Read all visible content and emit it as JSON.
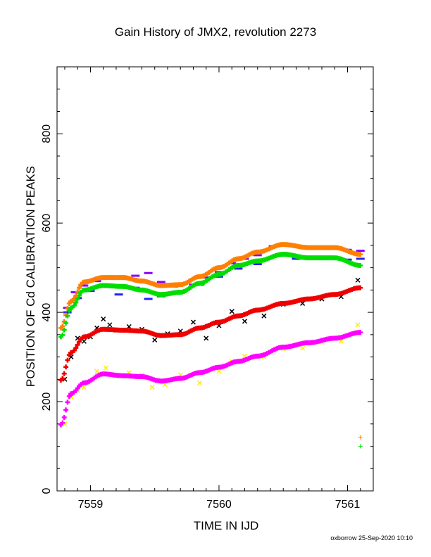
{
  "header": {
    "title": "Gain History of JMX2, revolution 2273",
    "footer": "oxborrow 25-Sep-2020 10:10"
  },
  "chart_data": {
    "type": "scatter",
    "title": "Gain History of JMX2, revolution 2273",
    "xlabel": "TIME IN IJD",
    "ylabel": "POSITION OF Cd CALIBRATION PEAKS",
    "xlim": [
      7558.74,
      7561.2
    ],
    "ylim": [
      0,
      950
    ],
    "x_ticks": [
      7559,
      7560,
      7561
    ],
    "x_tick_labels": [
      "7559",
      "7560",
      "7561"
    ],
    "y_ticks": [
      0,
      200,
      400,
      600,
      800
    ],
    "y_tick_labels": [
      "0",
      "200",
      "400",
      "600",
      "800"
    ],
    "grid": false,
    "legend": "none",
    "series": [
      {
        "color": "#ff7f00",
        "marker": "smooth",
        "x": [
          7558.77,
          7558.85,
          7558.95,
          7559.1,
          7559.25,
          7559.4,
          7559.55,
          7559.7,
          7559.85,
          7560.0,
          7560.15,
          7560.3,
          7560.5,
          7560.7,
          7560.9,
          7561.1
        ],
        "y": [
          365,
          425,
          468,
          478,
          478,
          470,
          460,
          462,
          480,
          500,
          520,
          535,
          552,
          545,
          545,
          530
        ]
      },
      {
        "color": "#00dd00",
        "marker": "smooth",
        "x": [
          7558.77,
          7558.85,
          7558.95,
          7559.1,
          7559.25,
          7559.4,
          7559.55,
          7559.7,
          7559.85,
          7560.0,
          7560.15,
          7560.3,
          7560.5,
          7560.7,
          7560.9,
          7561.1
        ],
        "y": [
          345,
          410,
          450,
          460,
          458,
          450,
          440,
          445,
          465,
          485,
          505,
          515,
          530,
          522,
          522,
          505
        ]
      },
      {
        "color": "#ee0000",
        "marker": "smooth",
        "x": [
          7558.77,
          7558.85,
          7558.95,
          7559.1,
          7559.25,
          7559.4,
          7559.55,
          7559.7,
          7559.85,
          7560.0,
          7560.15,
          7560.3,
          7560.5,
          7560.7,
          7560.9,
          7561.1
        ],
        "y": [
          248,
          310,
          345,
          362,
          360,
          358,
          348,
          350,
          365,
          378,
          392,
          405,
          420,
          430,
          440,
          455
        ]
      },
      {
        "color": "#ff00ff",
        "marker": "smooth",
        "x": [
          7558.77,
          7558.85,
          7558.95,
          7559.1,
          7559.25,
          7559.4,
          7559.55,
          7559.7,
          7559.85,
          7560.0,
          7560.15,
          7560.3,
          7560.5,
          7560.7,
          7560.9,
          7561.1
        ],
        "y": [
          148,
          218,
          242,
          262,
          258,
          256,
          246,
          252,
          265,
          277,
          290,
          302,
          322,
          332,
          342,
          355
        ]
      },
      {
        "color": "#8800ff",
        "marker": "dash",
        "x": [
          7558.82,
          7558.88,
          7558.95,
          7559.05,
          7559.15,
          7559.25,
          7559.35,
          7559.45,
          7559.55,
          7559.65,
          7559.8,
          7559.9,
          7560.0,
          7560.1,
          7560.2,
          7560.3,
          7560.42,
          7560.55,
          7560.7,
          7560.85,
          7561.0,
          7561.1
        ],
        "y": [
          410,
          445,
          460,
          470,
          478,
          480,
          482,
          488,
          468,
          458,
          462,
          478,
          490,
          510,
          520,
          528,
          548,
          552,
          546,
          543,
          540,
          538
        ]
      },
      {
        "color": "#2222ff",
        "marker": "dash",
        "x": [
          7558.82,
          7558.9,
          7559.0,
          7559.1,
          7559.22,
          7559.35,
          7559.45,
          7559.55,
          7559.7,
          7559.85,
          7560.0,
          7560.15,
          7560.3,
          7560.45,
          7560.6,
          7560.8,
          7561.0,
          7561.1
        ],
        "y": [
          400,
          432,
          448,
          462,
          440,
          455,
          430,
          436,
          445,
          462,
          480,
          498,
          508,
          528,
          520,
          520,
          518,
          520
        ]
      },
      {
        "color": "#000000",
        "marker": "x",
        "x": [
          7558.8,
          7558.85,
          7558.9,
          7558.95,
          7559.0,
          7559.05,
          7559.1,
          7559.15,
          7559.2,
          7559.3,
          7559.4,
          7559.5,
          7559.6,
          7559.7,
          7559.8,
          7559.9,
          7560.0,
          7560.1,
          7560.2,
          7560.35,
          7560.5,
          7560.65,
          7560.8,
          7560.95,
          7561.08
        ],
        "y": [
          250,
          300,
          342,
          335,
          345,
          365,
          385,
          372,
          360,
          368,
          362,
          338,
          352,
          358,
          378,
          342,
          370,
          402,
          380,
          392,
          418,
          420,
          430,
          435,
          472
        ]
      },
      {
        "color": "#ffee00",
        "marker": "x",
        "x": [
          7558.8,
          7558.85,
          7558.9,
          7558.95,
          7559.05,
          7559.12,
          7559.2,
          7559.3,
          7559.4,
          7559.48,
          7559.58,
          7559.7,
          7559.85,
          7560.0,
          7560.1,
          7560.2,
          7560.35,
          7560.5,
          7560.65,
          7560.8,
          7560.95,
          7561.08
        ],
        "y": [
          150,
          210,
          225,
          232,
          268,
          275,
          258,
          265,
          260,
          232,
          238,
          260,
          242,
          268,
          290,
          302,
          300,
          318,
          320,
          333,
          335,
          372
        ]
      }
    ],
    "outliers": [
      {
        "color": "#ff7f00",
        "x": 7561.1,
        "y": 120
      },
      {
        "color": "#00dd00",
        "x": 7561.1,
        "y": 100
      }
    ]
  }
}
